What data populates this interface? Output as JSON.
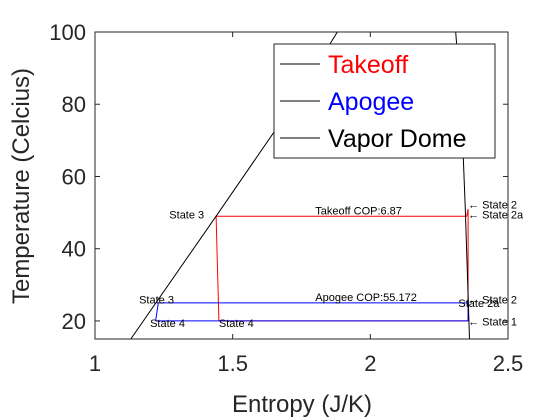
{
  "chart_data": {
    "type": "line",
    "xlabel": "Entropy (J/K)",
    "ylabel": "Temperature (Celcius)",
    "xlim": [
      1,
      2.5
    ],
    "ylim": [
      15,
      100
    ],
    "xticks": [
      1,
      1.5,
      2,
      2.5
    ],
    "yticks": [
      20,
      40,
      60,
      80,
      100
    ],
    "xtick_labels": [
      "1",
      "1.5",
      "2",
      "2.5"
    ],
    "ytick_labels": [
      "20",
      "40",
      "60",
      "80",
      "100"
    ],
    "grid": false,
    "legend_position": "top-right",
    "series": [
      {
        "name": "Takeoff",
        "color": "#ff0000",
        "x": [
          1.45,
          1.44,
          2.35,
          2.355,
          2.355,
          1.45
        ],
        "y": [
          20,
          49,
          49,
          51,
          20,
          20
        ]
      },
      {
        "name": "Apogee",
        "color": "#0000ff",
        "x": [
          1.22,
          1.23,
          2.35,
          2.355,
          2.355,
          1.22
        ],
        "y": [
          20,
          25,
          25,
          25,
          20,
          20
        ]
      },
      {
        "name": "Vapor Dome",
        "color": "#000000",
        "segments": [
          {
            "x": [
              1.13,
              1.44,
              1.72,
              1.88
            ],
            "y": [
              15,
              49,
              80,
              100
            ]
          },
          {
            "x": [
              2.31,
              2.33,
              2.345,
              2.36
            ],
            "y": [
              100,
              80,
              51,
              15
            ]
          }
        ]
      }
    ],
    "annotations": [
      {
        "text": "Takeoff COP:6.87",
        "x": 1.8,
        "y": 49.5
      },
      {
        "text": "State 3",
        "x": 1.27,
        "y": 48.3
      },
      {
        "text": "← State 2",
        "x": 2.355,
        "y": 51.2
      },
      {
        "text": "← State 2a",
        "x": 2.355,
        "y": 48.3
      },
      {
        "text": "Apogee COP:55.172",
        "x": 1.8,
        "y": 25.5
      },
      {
        "text": "State 3",
        "x": 1.16,
        "y": 24.8
      },
      {
        "text": "← State 2",
        "x": 2.355,
        "y": 24.8
      },
      {
        "text": "State 2a",
        "x": 2.32,
        "y": 23.8
      },
      {
        "text": "State 4",
        "x": 1.2,
        "y": 18.3
      },
      {
        "text": "State 4",
        "x": 1.45,
        "y": 18.3
      },
      {
        "text": "← State 1",
        "x": 2.355,
        "y": 18.7
      }
    ]
  }
}
